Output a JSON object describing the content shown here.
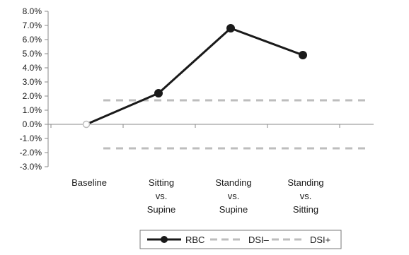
{
  "chart_data": {
    "type": "line",
    "title": "",
    "xlabel": "",
    "ylabel": "",
    "ylim": [
      -3.0,
      8.0
    ],
    "yticks": [
      "8.0%",
      "7.0%",
      "6.0%",
      "5.0%",
      "4.0%",
      "3.0%",
      "2.0%",
      "1.0%",
      "0.0%",
      "-1.0%",
      "-2.0%",
      "-3.0%"
    ],
    "ytick_values": [
      8,
      7,
      6,
      5,
      4,
      3,
      2,
      1,
      0,
      -1,
      -2,
      -3
    ],
    "categories": [
      [
        "Baseline"
      ],
      [
        "Sitting",
        "vs.",
        "Supine"
      ],
      [
        "Standing",
        "vs.",
        "Supine"
      ],
      [
        "Standing",
        "vs.",
        "Sitting"
      ]
    ],
    "grid": false,
    "legend_position": "bottom",
    "series": [
      {
        "name": "RBC",
        "style": "solid-marker",
        "color": "#1a1a1a",
        "values": [
          0.0,
          2.2,
          6.8,
          4.9
        ],
        "first_marker_hollow": true
      },
      {
        "name": "DSI–",
        "style": "dashed",
        "color": "#bdbdbd",
        "value": -1.7
      },
      {
        "name": "DSI+",
        "style": "dashed",
        "color": "#bdbdbd",
        "value": 1.7
      }
    ]
  }
}
